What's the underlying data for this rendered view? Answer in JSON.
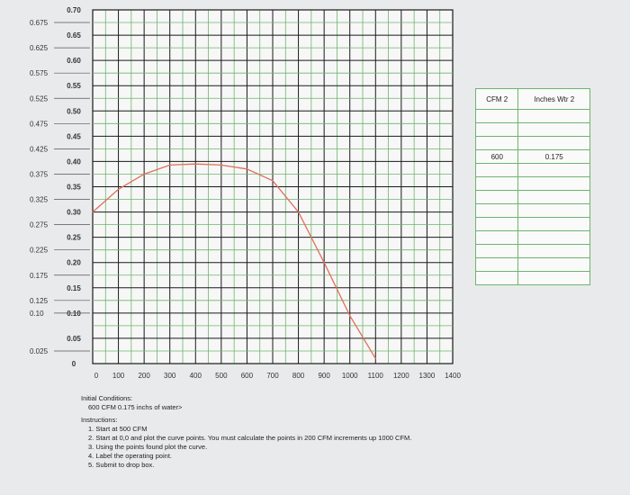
{
  "chart_data": {
    "type": "line",
    "x_ticks": [
      "0",
      "100",
      "200",
      "300",
      "400",
      "500",
      "600",
      "700",
      "800",
      "900",
      "1000",
      "1100",
      "1200",
      "1300",
      "1400"
    ],
    "y_ticks_left": [
      "0.675",
      "0.625",
      "0.575",
      "0.525",
      "0.475",
      "0.425",
      "0.375",
      "0.325",
      "0.275",
      "0.225",
      "0.175",
      "0.125",
      "0.10",
      "0.025"
    ],
    "y_ticks_right": [
      "0.70",
      "0.65",
      "0.60",
      "0.55",
      "0.50",
      "0.45",
      "0.40",
      "0.35",
      "0.30",
      "0.25",
      "0.20",
      "0.15",
      "0.10",
      "0.05",
      "0"
    ],
    "xlim": [
      0,
      1400
    ],
    "ylim": [
      0,
      0.7
    ],
    "grid": true,
    "series": [
      {
        "color": "#e0705a",
        "x": [
          0,
          100,
          200,
          300,
          400,
          500,
          600,
          700,
          800,
          900,
          1000,
          1100
        ],
        "y": [
          0.3,
          0.345,
          0.375,
          0.393,
          0.395,
          0.393,
          0.385,
          0.362,
          0.3,
          0.2,
          0.095,
          0.01
        ]
      }
    ]
  },
  "points_table": {
    "headers": [
      "CFM 2",
      "Inches Wtr 2"
    ],
    "rows": [
      [
        "",
        ""
      ],
      [
        "",
        ""
      ],
      [
        "",
        ""
      ],
      [
        "600",
        "0.175"
      ],
      [
        "",
        ""
      ],
      [
        "",
        ""
      ],
      [
        "",
        ""
      ],
      [
        "",
        ""
      ],
      [
        "",
        ""
      ],
      [
        "",
        ""
      ],
      [
        "",
        ""
      ],
      [
        "",
        ""
      ],
      [
        "",
        ""
      ]
    ]
  },
  "notes": {
    "initial_title": "Initial Conditions:",
    "initial_value": "600 CFM 0.175 inchs of water>",
    "instructions_title": "Instructions:",
    "instructions": [
      "1. Start at 500 CFM",
      "2. Start at 0,0 and plot the curve points. You must calculate the points in 200 CFM increments up 1000 CFM.",
      "3. Using the points found plot the curve.",
      "4. Label the operating point.",
      "5. Submit to drop box."
    ]
  },
  "colors": {
    "grid_green": "#6fb36f",
    "grid_dark": "#1a1a1a",
    "curve": "#e0705a",
    "plot_bg": "#f7f7f7"
  }
}
